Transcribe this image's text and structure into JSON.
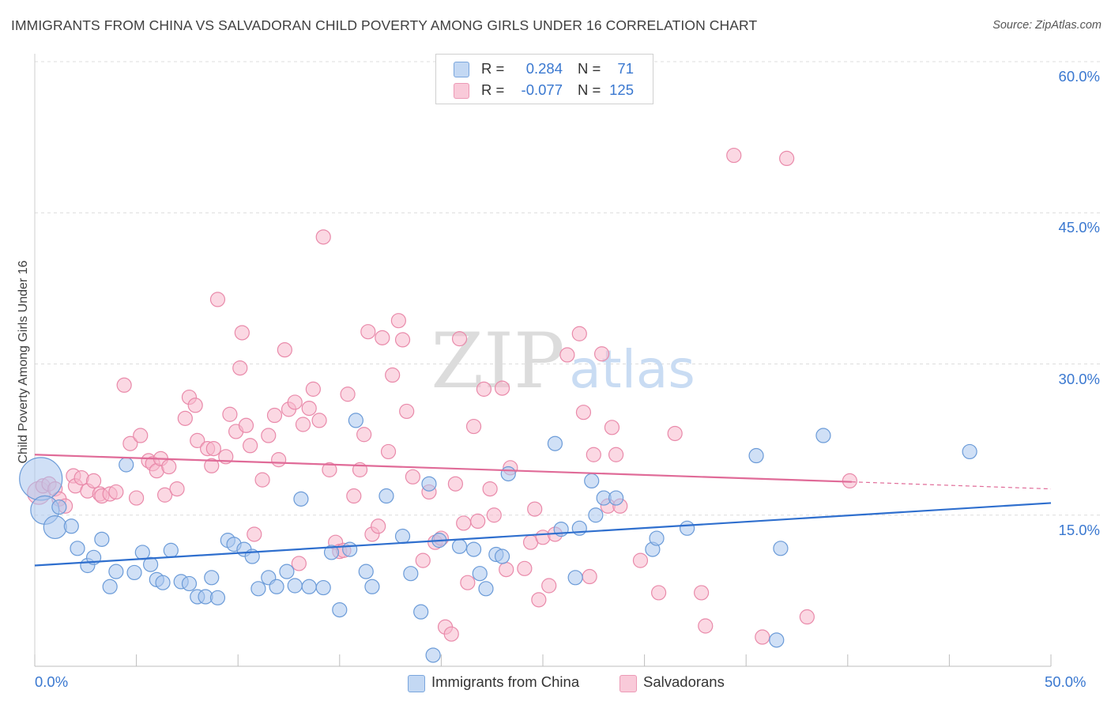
{
  "title": "IMMIGRANTS FROM CHINA VS SALVADORAN CHILD POVERTY AMONG GIRLS UNDER 16 CORRELATION CHART",
  "source": "Source: ZipAtlas.com",
  "watermark": {
    "zip": "ZIP",
    "atlas": "atlas"
  },
  "legend_top": [
    {
      "r_label": "R =",
      "r_value": "0.284",
      "n_label": "N =",
      "n_value": "71"
    },
    {
      "r_label": "R =",
      "r_value": "-0.077",
      "n_label": "N =",
      "n_value": "125"
    }
  ],
  "legend_bottom": [
    "Immigrants from China",
    "Salvadorans"
  ],
  "colors": {
    "blue_fill": "#a9c7ee",
    "blue_stroke": "#6b9bd8",
    "blue_line": "#2f6fce",
    "pink_fill": "#f7b8cc",
    "pink_stroke": "#e98aaa",
    "pink_line": "#e06b98",
    "tick_text": "#3a78d0",
    "grid": "#dcdcdc"
  },
  "chart_data": {
    "type": "scatter",
    "title": "IMMIGRANTS FROM CHINA VS SALVADORAN CHILD POVERTY AMONG GIRLS UNDER 16 CORRELATION CHART",
    "xlabel": "",
    "ylabel": "Child Poverty Among Girls Under 16",
    "xlim": [
      0,
      50
    ],
    "ylim": [
      0,
      60
    ],
    "x_tick_labels": [
      "0.0%",
      "50.0%"
    ],
    "y_ticks": [
      15,
      30,
      45,
      60
    ],
    "y_tick_labels": [
      "15.0%",
      "30.0%",
      "45.0%",
      "60.0%"
    ],
    "grid": true,
    "legend_placement": "top-center",
    "series": [
      {
        "name": "Immigrants from China",
        "color": "#a9c7ee",
        "trend": {
          "x": [
            0,
            50
          ],
          "y": [
            10.0,
            16.2
          ]
        },
        "points": [
          [
            0.3,
            18.6,
            3
          ],
          [
            0.5,
            15.5,
            2
          ],
          [
            1.0,
            13.8,
            1.6
          ],
          [
            1.2,
            15.8,
            1
          ],
          [
            1.8,
            13.9,
            1
          ],
          [
            2.1,
            11.7,
            1
          ],
          [
            2.6,
            10.0,
            1
          ],
          [
            2.9,
            10.8,
            1
          ],
          [
            3.3,
            12.6,
            1
          ],
          [
            3.7,
            7.9,
            1
          ],
          [
            4.0,
            9.4,
            1
          ],
          [
            4.5,
            20.0,
            1
          ],
          [
            4.9,
            9.3,
            1
          ],
          [
            5.3,
            11.3,
            1
          ],
          [
            5.7,
            10.1,
            1
          ],
          [
            6.0,
            8.6,
            1
          ],
          [
            6.3,
            8.3,
            1
          ],
          [
            6.7,
            11.5,
            1
          ],
          [
            7.2,
            8.4,
            1
          ],
          [
            7.6,
            8.2,
            1
          ],
          [
            8.0,
            6.9,
            1
          ],
          [
            8.4,
            6.9,
            1
          ],
          [
            8.7,
            8.8,
            1
          ],
          [
            9.0,
            6.8,
            1
          ],
          [
            9.5,
            12.5,
            1
          ],
          [
            9.8,
            12.1,
            1
          ],
          [
            10.3,
            11.6,
            1
          ],
          [
            10.7,
            10.9,
            1
          ],
          [
            11.0,
            7.7,
            1
          ],
          [
            11.5,
            8.8,
            1
          ],
          [
            11.9,
            7.9,
            1
          ],
          [
            12.4,
            9.4,
            1
          ],
          [
            12.8,
            8.0,
            1
          ],
          [
            13.1,
            16.6,
            1
          ],
          [
            13.5,
            7.9,
            1
          ],
          [
            14.2,
            7.8,
            1
          ],
          [
            14.6,
            11.3,
            1
          ],
          [
            15.0,
            5.6,
            1
          ],
          [
            15.5,
            11.6,
            1
          ],
          [
            15.8,
            24.4,
            1
          ],
          [
            16.3,
            9.4,
            1
          ],
          [
            16.6,
            7.9,
            1
          ],
          [
            17.3,
            16.9,
            1
          ],
          [
            18.1,
            12.9,
            1
          ],
          [
            18.5,
            9.2,
            1
          ],
          [
            19.0,
            5.4,
            1
          ],
          [
            19.4,
            18.1,
            1
          ],
          [
            19.6,
            1.1,
            1
          ],
          [
            19.9,
            12.5,
            1
          ],
          [
            20.9,
            11.9,
            1
          ],
          [
            21.6,
            11.6,
            1
          ],
          [
            21.9,
            9.2,
            1
          ],
          [
            22.2,
            7.7,
            1
          ],
          [
            22.7,
            11.1,
            1
          ],
          [
            23.0,
            10.9,
            1
          ],
          [
            23.3,
            19.1,
            1
          ],
          [
            25.6,
            22.1,
            1
          ],
          [
            25.9,
            13.6,
            1
          ],
          [
            26.6,
            8.8,
            1
          ],
          [
            26.8,
            13.7,
            1
          ],
          [
            27.4,
            18.4,
            1
          ],
          [
            27.6,
            15.0,
            1
          ],
          [
            28.0,
            16.7,
            1
          ],
          [
            28.6,
            16.7,
            1
          ],
          [
            30.4,
            11.6,
            1
          ],
          [
            30.6,
            12.7,
            1
          ],
          [
            32.1,
            13.7,
            1
          ],
          [
            35.5,
            20.9,
            1
          ],
          [
            36.7,
            11.7,
            1
          ],
          [
            36.5,
            2.6,
            1
          ],
          [
            38.8,
            22.9,
            1
          ],
          [
            46.0,
            21.3,
            1
          ]
        ]
      },
      {
        "name": "Salvadorans",
        "color": "#f7b8cc",
        "trend": {
          "x": [
            0,
            40.2
          ],
          "y": [
            21.0,
            18.3
          ],
          "dashed_to": {
            "x": 50,
            "y": 17.6
          }
        },
        "points": [
          [
            0.2,
            17.2,
            1.6
          ],
          [
            0.4,
            17.9,
            1
          ],
          [
            0.7,
            18.1,
            1
          ],
          [
            1.0,
            17.6,
            1
          ],
          [
            1.2,
            16.6,
            1
          ],
          [
            1.5,
            15.9,
            1
          ],
          [
            1.9,
            18.9,
            1
          ],
          [
            2.0,
            17.9,
            1
          ],
          [
            2.3,
            18.7,
            1
          ],
          [
            2.6,
            17.4,
            1
          ],
          [
            2.9,
            18.4,
            1
          ],
          [
            3.2,
            17.1,
            1
          ],
          [
            3.3,
            16.9,
            1
          ],
          [
            3.7,
            17.1,
            1
          ],
          [
            4.0,
            17.3,
            1
          ],
          [
            4.4,
            27.9,
            1
          ],
          [
            4.7,
            22.1,
            1
          ],
          [
            5.0,
            16.7,
            1
          ],
          [
            5.2,
            22.9,
            1
          ],
          [
            5.6,
            20.4,
            1
          ],
          [
            5.8,
            20.1,
            1
          ],
          [
            6.0,
            19.4,
            1
          ],
          [
            6.2,
            20.6,
            1
          ],
          [
            6.4,
            17.0,
            1
          ],
          [
            6.6,
            19.8,
            1
          ],
          [
            7.0,
            17.6,
            1
          ],
          [
            7.4,
            24.6,
            1
          ],
          [
            7.6,
            26.7,
            1
          ],
          [
            7.9,
            25.9,
            1
          ],
          [
            8.0,
            22.4,
            1
          ],
          [
            8.5,
            21.6,
            1
          ],
          [
            8.7,
            19.9,
            1
          ],
          [
            8.8,
            21.6,
            1
          ],
          [
            9.0,
            36.4,
            1
          ],
          [
            9.4,
            20.8,
            1
          ],
          [
            9.6,
            25.0,
            1
          ],
          [
            9.9,
            23.3,
            1
          ],
          [
            10.1,
            29.6,
            1
          ],
          [
            10.2,
            33.1,
            1
          ],
          [
            10.4,
            23.9,
            1
          ],
          [
            10.6,
            21.9,
            1
          ],
          [
            10.8,
            13.1,
            1
          ],
          [
            11.2,
            18.5,
            1
          ],
          [
            11.5,
            22.9,
            1
          ],
          [
            11.8,
            24.9,
            1
          ],
          [
            12.0,
            20.5,
            1
          ],
          [
            12.3,
            31.4,
            1
          ],
          [
            12.5,
            25.5,
            1
          ],
          [
            12.8,
            26.2,
            1
          ],
          [
            13.0,
            10.2,
            1
          ],
          [
            13.2,
            24.0,
            1
          ],
          [
            13.5,
            25.6,
            1
          ],
          [
            13.7,
            27.5,
            1
          ],
          [
            14.0,
            24.4,
            1
          ],
          [
            14.2,
            42.6,
            1
          ],
          [
            14.5,
            19.5,
            1
          ],
          [
            14.8,
            12.3,
            1
          ],
          [
            15.0,
            11.4,
            1
          ],
          [
            15.2,
            11.5,
            1
          ],
          [
            15.4,
            27.0,
            1
          ],
          [
            15.7,
            16.9,
            1
          ],
          [
            16.0,
            19.5,
            1
          ],
          [
            16.2,
            23.0,
            1
          ],
          [
            16.4,
            33.2,
            1
          ],
          [
            16.6,
            13.1,
            1
          ],
          [
            16.9,
            13.9,
            1
          ],
          [
            17.1,
            32.6,
            1
          ],
          [
            17.4,
            21.3,
            1
          ],
          [
            17.6,
            28.9,
            1
          ],
          [
            17.9,
            34.3,
            1
          ],
          [
            18.1,
            32.4,
            1
          ],
          [
            18.3,
            25.3,
            1
          ],
          [
            18.6,
            18.8,
            1
          ],
          [
            19.1,
            10.5,
            1
          ],
          [
            19.4,
            17.3,
            1
          ],
          [
            19.7,
            12.3,
            1
          ],
          [
            20.0,
            12.7,
            1
          ],
          [
            20.2,
            3.9,
            1
          ],
          [
            20.5,
            3.2,
            1
          ],
          [
            20.7,
            18.1,
            1
          ],
          [
            20.9,
            32.5,
            1
          ],
          [
            21.1,
            14.2,
            1
          ],
          [
            21.3,
            8.3,
            1
          ],
          [
            21.6,
            23.8,
            1
          ],
          [
            21.8,
            14.4,
            1
          ],
          [
            22.1,
            27.5,
            1
          ],
          [
            22.4,
            17.6,
            1
          ],
          [
            22.6,
            15.0,
            1
          ],
          [
            23.0,
            27.6,
            1
          ],
          [
            23.2,
            9.6,
            1
          ],
          [
            23.4,
            19.7,
            1
          ],
          [
            24.1,
            9.7,
            1
          ],
          [
            24.4,
            12.3,
            1
          ],
          [
            24.6,
            15.6,
            1
          ],
          [
            24.8,
            6.6,
            1
          ],
          [
            25.0,
            12.8,
            1
          ],
          [
            25.3,
            8.0,
            1
          ],
          [
            25.6,
            13.1,
            1
          ],
          [
            26.2,
            30.9,
            1
          ],
          [
            26.8,
            33.0,
            1
          ],
          [
            27.0,
            25.2,
            1
          ],
          [
            27.3,
            8.9,
            1
          ],
          [
            27.5,
            21.0,
            1
          ],
          [
            27.9,
            31.0,
            1
          ],
          [
            28.2,
            15.9,
            1
          ],
          [
            28.4,
            23.7,
            1
          ],
          [
            28.6,
            21.0,
            1
          ],
          [
            28.8,
            15.9,
            1
          ],
          [
            29.8,
            10.5,
            1
          ],
          [
            30.7,
            7.3,
            1
          ],
          [
            31.5,
            23.1,
            1
          ],
          [
            32.8,
            7.3,
            1
          ],
          [
            33.0,
            4.0,
            1
          ],
          [
            34.4,
            50.7,
            1
          ],
          [
            35.8,
            2.9,
            1
          ],
          [
            37.0,
            50.4,
            1
          ],
          [
            38.0,
            4.9,
            1
          ],
          [
            40.1,
            18.4,
            1
          ]
        ]
      }
    ]
  }
}
